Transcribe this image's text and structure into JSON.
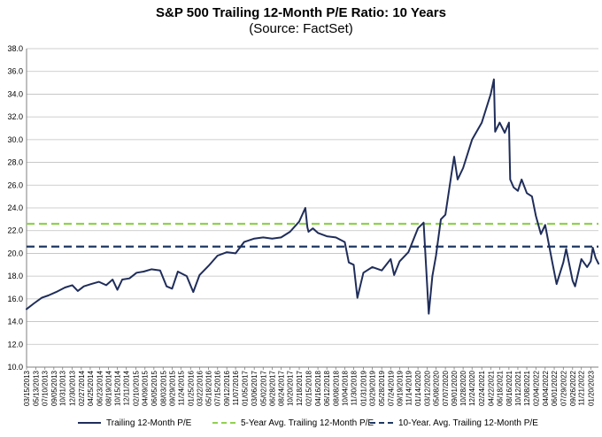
{
  "chart_data": {
    "type": "line",
    "title": "S&P 500 Trailing 12-Month P/E Ratio: 10 Years",
    "subtitle": "(Source: FactSet)",
    "xlabel": "",
    "ylabel": "",
    "ylim": [
      10.0,
      38.0
    ],
    "yticks": [
      "10.0",
      "12.0",
      "14.0",
      "16.0",
      "18.0",
      "20.0",
      "22.0",
      "24.0",
      "26.0",
      "28.0",
      "30.0",
      "32.0",
      "34.0",
      "36.0",
      "38.0"
    ],
    "xlim": [
      "2013-03-15",
      "2023-03-10"
    ],
    "xticks": [
      "03/15/2013",
      "05/13/2013",
      "07/10/2013",
      "09/05/2013",
      "10/31/2013",
      "12/30/2013",
      "02/27/2014",
      "04/25/2014",
      "06/23/2014",
      "08/19/2014",
      "10/15/2014",
      "12/11/2014",
      "02/10/2015",
      "04/09/2015",
      "06/05/2015",
      "08/03/2015",
      "09/29/2015",
      "11/24/2015",
      "01/25/2016",
      "03/22/2016",
      "05/18/2016",
      "07/15/2016",
      "09/12/2016",
      "11/07/2016",
      "01/05/2017",
      "03/06/2017",
      "05/02/2017",
      "06/28/2017",
      "08/24/2017",
      "10/20/2017",
      "12/18/2017",
      "02/15/2018",
      "04/16/2018",
      "06/12/2018",
      "08/08/2018",
      "10/04/2018",
      "11/30/2018",
      "01/31/2019",
      "03/29/2019",
      "05/28/2019",
      "07/24/2019",
      "09/19/2019",
      "11/14/2019",
      "01/14/2020",
      "03/12/2020",
      "05/08/2020",
      "07/07/2020",
      "09/01/2020",
      "10/28/2020",
      "12/24/2020",
      "02/24/2021",
      "04/22/2021",
      "06/18/2021",
      "08/16/2021",
      "10/12/2021",
      "12/08/2021",
      "02/04/2022",
      "04/04/2022",
      "06/01/2022",
      "07/29/2022",
      "09/26/2022",
      "11/21/2022",
      "01/20/2023"
    ],
    "grid": true,
    "legend_position": "bottom",
    "series": [
      {
        "name": "Trailing 12-Month P/E",
        "color": "#1f2d5a",
        "style": "solid",
        "points": [
          [
            "2013-03-15",
            15.1
          ],
          [
            "2013-05-01",
            15.6
          ],
          [
            "2013-06-20",
            16.1
          ],
          [
            "2013-08-01",
            16.3
          ],
          [
            "2013-09-20",
            16.6
          ],
          [
            "2013-11-15",
            17.0
          ],
          [
            "2014-01-01",
            17.2
          ],
          [
            "2014-02-05",
            16.7
          ],
          [
            "2014-03-15",
            17.1
          ],
          [
            "2014-05-01",
            17.3
          ],
          [
            "2014-06-20",
            17.5
          ],
          [
            "2014-08-05",
            17.2
          ],
          [
            "2014-09-15",
            17.7
          ],
          [
            "2014-10-15",
            16.8
          ],
          [
            "2014-11-15",
            17.7
          ],
          [
            "2014-12-31",
            17.8
          ],
          [
            "2015-02-15",
            18.3
          ],
          [
            "2015-04-01",
            18.4
          ],
          [
            "2015-05-20",
            18.6
          ],
          [
            "2015-07-15",
            18.5
          ],
          [
            "2015-08-25",
            17.1
          ],
          [
            "2015-09-29",
            16.9
          ],
          [
            "2015-11-05",
            18.4
          ],
          [
            "2015-12-31",
            18.0
          ],
          [
            "2016-02-11",
            16.6
          ],
          [
            "2016-03-22",
            18.1
          ],
          [
            "2016-05-18",
            18.9
          ],
          [
            "2016-07-15",
            19.8
          ],
          [
            "2016-09-12",
            20.1
          ],
          [
            "2016-11-07",
            20.0
          ],
          [
            "2016-12-31",
            21.0
          ],
          [
            "2017-03-06",
            21.3
          ],
          [
            "2017-05-02",
            21.4
          ],
          [
            "2017-06-28",
            21.3
          ],
          [
            "2017-08-24",
            21.4
          ],
          [
            "2017-10-20",
            21.9
          ],
          [
            "2017-12-18",
            22.8
          ],
          [
            "2018-01-26",
            24.0
          ],
          [
            "2018-02-08",
            22.3
          ],
          [
            "2018-02-15",
            21.9
          ],
          [
            "2018-03-15",
            22.2
          ],
          [
            "2018-04-16",
            21.8
          ],
          [
            "2018-06-12",
            21.5
          ],
          [
            "2018-08-08",
            21.4
          ],
          [
            "2018-10-04",
            21.0
          ],
          [
            "2018-10-30",
            19.2
          ],
          [
            "2018-11-30",
            19.0
          ],
          [
            "2018-12-24",
            16.1
          ],
          [
            "2019-01-31",
            18.3
          ],
          [
            "2019-03-29",
            18.8
          ],
          [
            "2019-05-28",
            18.5
          ],
          [
            "2019-07-24",
            19.5
          ],
          [
            "2019-08-15",
            18.1
          ],
          [
            "2019-09-19",
            19.3
          ],
          [
            "2019-11-14",
            20.1
          ],
          [
            "2020-01-14",
            22.2
          ],
          [
            "2020-02-19",
            22.7
          ],
          [
            "2020-03-23",
            14.7
          ],
          [
            "2020-04-15",
            18.0
          ],
          [
            "2020-05-08",
            19.8
          ],
          [
            "2020-06-08",
            23.0
          ],
          [
            "2020-07-07",
            23.4
          ],
          [
            "2020-08-15",
            27.0
          ],
          [
            "2020-09-01",
            28.5
          ],
          [
            "2020-09-23",
            26.5
          ],
          [
            "2020-10-28",
            27.5
          ],
          [
            "2020-12-24",
            30.0
          ],
          [
            "2021-02-24",
            31.5
          ],
          [
            "2021-04-22",
            34.0
          ],
          [
            "2021-05-12",
            35.3
          ],
          [
            "2021-05-20",
            30.7
          ],
          [
            "2021-06-18",
            31.5
          ],
          [
            "2021-07-20",
            30.6
          ],
          [
            "2021-08-16",
            31.5
          ],
          [
            "2021-08-24",
            26.5
          ],
          [
            "2021-09-15",
            25.8
          ],
          [
            "2021-10-12",
            25.5
          ],
          [
            "2021-11-05",
            26.5
          ],
          [
            "2021-12-08",
            25.3
          ],
          [
            "2022-01-10",
            25.0
          ],
          [
            "2022-02-04",
            23.3
          ],
          [
            "2022-03-08",
            21.7
          ],
          [
            "2022-04-04",
            22.5
          ],
          [
            "2022-05-20",
            19.2
          ],
          [
            "2022-06-16",
            17.3
          ],
          [
            "2022-07-29",
            19.2
          ],
          [
            "2022-08-16",
            20.4
          ],
          [
            "2022-09-26",
            17.6
          ],
          [
            "2022-10-12",
            17.1
          ],
          [
            "2022-11-21",
            19.5
          ],
          [
            "2022-12-28",
            18.8
          ],
          [
            "2023-01-20",
            19.3
          ],
          [
            "2023-02-02",
            20.5
          ],
          [
            "2023-02-20",
            19.6
          ],
          [
            "2023-03-10",
            19.1
          ]
        ]
      },
      {
        "name": "5-Year Avg. Trailing 12-Month P/E",
        "color": "#8fd14f",
        "style": "dashed",
        "value": 22.6
      },
      {
        "name": "10-Year. Avg. Trailing 12-Month P/E",
        "color": "#1f3864",
        "style": "dashed",
        "value": 20.6
      }
    ]
  }
}
